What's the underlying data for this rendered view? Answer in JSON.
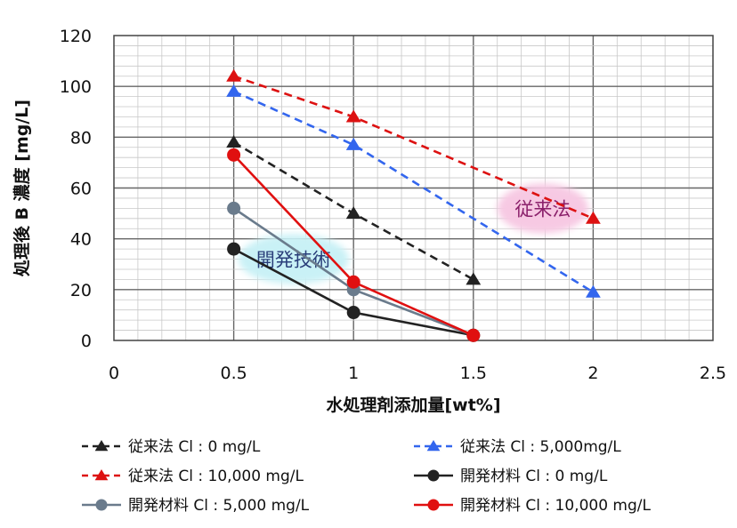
{
  "chart_data": {
    "type": "line",
    "title": "",
    "xlabel": "水処理剤添加量[wt%]",
    "ylabel": "処理後 B 濃度 [mg/L]",
    "xlim": [
      0,
      2.5
    ],
    "ylim": [
      0,
      120
    ],
    "xticks": [
      "0",
      "0.5",
      "1",
      "1.5",
      "2",
      "2.5"
    ],
    "yticks": [
      "0",
      "20",
      "40",
      "60",
      "80",
      "100",
      "120"
    ],
    "grid": true,
    "legend_position": "bottom",
    "series": [
      {
        "name": "従来法 Cl : 0 mg/L",
        "marker": "triangle",
        "dash": true,
        "color": "#222222",
        "x": [
          0.5,
          1,
          1.5
        ],
        "y": [
          78,
          50,
          24
        ]
      },
      {
        "name": "従来法 Cl : 5,000mg/L",
        "marker": "triangle",
        "dash": true,
        "color": "#3366ee",
        "x": [
          0.5,
          1,
          2
        ],
        "y": [
          98,
          77,
          19
        ]
      },
      {
        "name": "従来法 Cl : 10,000 mg/L",
        "marker": "triangle",
        "dash": true,
        "color": "#dd1111",
        "x": [
          0.5,
          1,
          2
        ],
        "y": [
          104,
          88,
          48
        ]
      },
      {
        "name": "開発材料 Cl : 0 mg/L",
        "marker": "circle",
        "dash": false,
        "color": "#222222",
        "x": [
          0.5,
          1,
          1.5
        ],
        "y": [
          36,
          11,
          2
        ]
      },
      {
        "name": "開発材料 Cl : 5,000 mg/L",
        "marker": "circle",
        "dash": false,
        "color": "#6a7b8c",
        "x": [
          0.5,
          1,
          1.5
        ],
        "y": [
          52,
          20,
          2
        ]
      },
      {
        "name": "開発材料 Cl : 10,000 mg/L",
        "marker": "circle",
        "dash": false,
        "color": "#e01010",
        "x": [
          0.5,
          1,
          1.5
        ],
        "y": [
          73,
          23,
          2
        ]
      }
    ],
    "annotations": [
      {
        "text": "従来法",
        "x": 1.79,
        "y": 52,
        "bg": "#f7c9e3",
        "color": "#8a1f6a"
      },
      {
        "text": "開発技術",
        "x": 0.75,
        "y": 32,
        "bg": "#c9f1f6",
        "color": "#2a3f7a"
      }
    ]
  }
}
